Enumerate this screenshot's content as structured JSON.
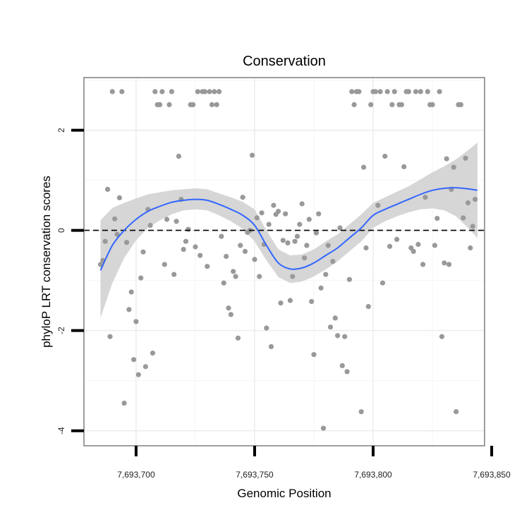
{
  "chart_data": {
    "type": "scatter",
    "title": "Conservation",
    "xlabel": "Genomic Position",
    "ylabel": "phyloP LRT conservation scores",
    "xlim": [
      7693678,
      7693847
    ],
    "ylim": [
      -4.3,
      3.05
    ],
    "x_ticks": [
      {
        "value": 7693700,
        "label": "7,693,700"
      },
      {
        "value": 7693750,
        "label": "7,693,750"
      },
      {
        "value": 7693800,
        "label": "7,693,800"
      },
      {
        "value": 7693850,
        "label": "7,693,850"
      }
    ],
    "y_ticks": [
      {
        "value": -4,
        "label": "-4"
      },
      {
        "value": -2,
        "label": "-2"
      },
      {
        "value": 0,
        "label": "0"
      },
      {
        "value": 2,
        "label": "2"
      }
    ],
    "reference_line": {
      "y": 0,
      "style": "dashed",
      "color": "#000000"
    },
    "points_color": "#999999",
    "smooth_color": "#3366ff",
    "band_color": "#d4d4d4",
    "points": [
      [
        7693685,
        -0.68
      ],
      [
        7693686,
        -0.6
      ],
      [
        7693687,
        -0.22
      ],
      [
        7693688,
        0.82
      ],
      [
        7693689,
        -2.12
      ],
      [
        7693690,
        2.77
      ],
      [
        7693691,
        0.23
      ],
      [
        7693692,
        -0.08
      ],
      [
        7693693,
        0.65
      ],
      [
        7693694,
        2.77
      ],
      [
        7693695,
        -3.45
      ],
      [
        7693696,
        -0.24
      ],
      [
        7693697,
        -1.58
      ],
      [
        7693698,
        -1.23
      ],
      [
        7693699,
        -2.58
      ],
      [
        7693700,
        -1.82
      ],
      [
        7693701,
        -2.88
      ],
      [
        7693702,
        -0.95
      ],
      [
        7693703,
        -0.43
      ],
      [
        7693704,
        -2.72
      ],
      [
        7693705,
        0.42
      ],
      [
        7693706,
        0.1
      ],
      [
        7693707,
        -2.45
      ],
      [
        7693708,
        2.77
      ],
      [
        7693709,
        2.51
      ],
      [
        7693710,
        2.51
      ],
      [
        7693711,
        2.77
      ],
      [
        7693712,
        -0.68
      ],
      [
        7693713,
        0.22
      ],
      [
        7693714,
        2.51
      ],
      [
        7693715,
        2.77
      ],
      [
        7693716,
        -0.88
      ],
      [
        7693717,
        0.18
      ],
      [
        7693718,
        1.48
      ],
      [
        7693719,
        0.62
      ],
      [
        7693720,
        -0.38
      ],
      [
        7693721,
        -0.22
      ],
      [
        7693722,
        0.02
      ],
      [
        7693723,
        2.51
      ],
      [
        7693724,
        2.51
      ],
      [
        7693725,
        -0.33
      ],
      [
        7693726,
        2.77
      ],
      [
        7693727,
        -0.5
      ],
      [
        7693728,
        2.77
      ],
      [
        7693729,
        2.77
      ],
      [
        7693730,
        -0.72
      ],
      [
        7693731,
        2.77
      ],
      [
        7693732,
        2.51
      ],
      [
        7693733,
        2.77
      ],
      [
        7693734,
        2.51
      ],
      [
        7693735,
        2.77
      ],
      [
        7693736,
        -0.12
      ],
      [
        7693737,
        -1.05
      ],
      [
        7693738,
        -0.52
      ],
      [
        7693739,
        -1.55
      ],
      [
        7693740,
        -1.68
      ],
      [
        7693741,
        -0.82
      ],
      [
        7693742,
        -0.92
      ],
      [
        7693743,
        -2.15
      ],
      [
        7693744,
        -0.3
      ],
      [
        7693745,
        0.66
      ],
      [
        7693746,
        -0.42
      ],
      [
        7693747,
        -0.04
      ],
      [
        7693748,
        0.0
      ],
      [
        7693749,
        1.5
      ],
      [
        7693750,
        -0.58
      ],
      [
        7693751,
        0.25
      ],
      [
        7693752,
        -0.92
      ],
      [
        7693753,
        0.35
      ],
      [
        7693754,
        -0.28
      ],
      [
        7693755,
        -1.95
      ],
      [
        7693756,
        0.12
      ],
      [
        7693757,
        -2.32
      ],
      [
        7693758,
        0.5
      ],
      [
        7693759,
        0.32
      ],
      [
        7693760,
        0.38
      ],
      [
        7693761,
        -1.45
      ],
      [
        7693762,
        -0.2
      ],
      [
        7693763,
        0.33
      ],
      [
        7693764,
        -0.25
      ],
      [
        7693765,
        -1.4
      ],
      [
        7693766,
        -0.92
      ],
      [
        7693767,
        -0.22
      ],
      [
        7693768,
        -0.12
      ],
      [
        7693769,
        0.12
      ],
      [
        7693770,
        0.53
      ],
      [
        7693771,
        -0.55
      ],
      [
        7693772,
        -0.3
      ],
      [
        7693773,
        0.22
      ],
      [
        7693774,
        -1.42
      ],
      [
        7693775,
        -2.48
      ],
      [
        7693776,
        -0.05
      ],
      [
        7693777,
        0.33
      ],
      [
        7693778,
        -1.15
      ],
      [
        7693779,
        -3.95
      ],
      [
        7693780,
        -0.88
      ],
      [
        7693781,
        -0.3
      ],
      [
        7693782,
        -1.93
      ],
      [
        7693783,
        -0.62
      ],
      [
        7693784,
        -1.75
      ],
      [
        7693785,
        -2.1
      ],
      [
        7693786,
        0.05
      ],
      [
        7693787,
        -2.7
      ],
      [
        7693788,
        -2.12
      ],
      [
        7693789,
        -2.82
      ],
      [
        7693790,
        -0.98
      ],
      [
        7693791,
        2.77
      ],
      [
        7693792,
        2.51
      ],
      [
        7693793,
        2.77
      ],
      [
        7693794,
        2.77
      ],
      [
        7693795,
        -3.62
      ],
      [
        7693796,
        1.26
      ],
      [
        7693797,
        -0.35
      ],
      [
        7693798,
        -1.52
      ],
      [
        7693799,
        2.51
      ],
      [
        7693800,
        2.77
      ],
      [
        7693801,
        2.77
      ],
      [
        7693802,
        0.5
      ],
      [
        7693803,
        2.77
      ],
      [
        7693804,
        -1.05
      ],
      [
        7693805,
        1.48
      ],
      [
        7693806,
        2.77
      ],
      [
        7693807,
        -0.32
      ],
      [
        7693808,
        2.51
      ],
      [
        7693809,
        2.77
      ],
      [
        7693810,
        -0.18
      ],
      [
        7693811,
        2.51
      ],
      [
        7693812,
        2.51
      ],
      [
        7693813,
        1.27
      ],
      [
        7693814,
        2.77
      ],
      [
        7693815,
        2.77
      ],
      [
        7693816,
        -0.35
      ],
      [
        7693817,
        -0.42
      ],
      [
        7693818,
        2.77
      ],
      [
        7693819,
        -0.28
      ],
      [
        7693820,
        2.77
      ],
      [
        7693821,
        -0.68
      ],
      [
        7693822,
        0.66
      ],
      [
        7693823,
        2.77
      ],
      [
        7693824,
        2.51
      ],
      [
        7693825,
        2.51
      ],
      [
        7693826,
        -0.3
      ],
      [
        7693827,
        0.24
      ],
      [
        7693828,
        2.77
      ],
      [
        7693829,
        -2.12
      ],
      [
        7693830,
        -0.65
      ],
      [
        7693831,
        1.43
      ],
      [
        7693832,
        -0.68
      ],
      [
        7693833,
        0.82
      ],
      [
        7693834,
        1.26
      ],
      [
        7693835,
        -3.62
      ],
      [
        7693836,
        2.51
      ],
      [
        7693837,
        2.51
      ],
      [
        7693838,
        0.25
      ],
      [
        7693839,
        1.44
      ],
      [
        7693840,
        0.55
      ],
      [
        7693841,
        -0.35
      ],
      [
        7693842,
        0.08
      ],
      [
        7693843,
        0.62
      ]
    ],
    "smooth": [
      [
        7693685,
        -0.8
      ],
      [
        7693690,
        -0.3
      ],
      [
        7693695,
        0.0
      ],
      [
        7693700,
        0.22
      ],
      [
        7693705,
        0.38
      ],
      [
        7693710,
        0.48
      ],
      [
        7693715,
        0.56
      ],
      [
        7693720,
        0.6
      ],
      [
        7693725,
        0.62
      ],
      [
        7693730,
        0.6
      ],
      [
        7693735,
        0.52
      ],
      [
        7693740,
        0.42
      ],
      [
        7693745,
        0.3
      ],
      [
        7693750,
        0.1
      ],
      [
        7693755,
        -0.3
      ],
      [
        7693760,
        -0.65
      ],
      [
        7693765,
        -0.77
      ],
      [
        7693770,
        -0.75
      ],
      [
        7693775,
        -0.65
      ],
      [
        7693780,
        -0.5
      ],
      [
        7693785,
        -0.35
      ],
      [
        7693790,
        -0.15
      ],
      [
        7693795,
        0.05
      ],
      [
        7693800,
        0.3
      ],
      [
        7693805,
        0.42
      ],
      [
        7693810,
        0.52
      ],
      [
        7693815,
        0.62
      ],
      [
        7693820,
        0.72
      ],
      [
        7693825,
        0.8
      ],
      [
        7693830,
        0.84
      ],
      [
        7693835,
        0.85
      ],
      [
        7693840,
        0.83
      ],
      [
        7693844,
        0.8
      ]
    ],
    "band_lower": [
      [
        7693685,
        -1.75
      ],
      [
        7693690,
        -1.05
      ],
      [
        7693695,
        -0.55
      ],
      [
        7693700,
        -0.2
      ],
      [
        7693705,
        0.05
      ],
      [
        7693710,
        0.2
      ],
      [
        7693715,
        0.32
      ],
      [
        7693720,
        0.4
      ],
      [
        7693725,
        0.42
      ],
      [
        7693730,
        0.4
      ],
      [
        7693735,
        0.3
      ],
      [
        7693740,
        0.18
      ],
      [
        7693745,
        0.03
      ],
      [
        7693750,
        -0.22
      ],
      [
        7693755,
        -0.6
      ],
      [
        7693760,
        -0.93
      ],
      [
        7693765,
        -1.05
      ],
      [
        7693770,
        -1.02
      ],
      [
        7693775,
        -0.92
      ],
      [
        7693780,
        -0.78
      ],
      [
        7693785,
        -0.62
      ],
      [
        7693790,
        -0.42
      ],
      [
        7693795,
        -0.22
      ],
      [
        7693800,
        0.05
      ],
      [
        7693805,
        0.18
      ],
      [
        7693810,
        0.28
      ],
      [
        7693815,
        0.36
      ],
      [
        7693820,
        0.42
      ],
      [
        7693825,
        0.44
      ],
      [
        7693830,
        0.4
      ],
      [
        7693835,
        0.28
      ],
      [
        7693840,
        0.05
      ],
      [
        7693844,
        -0.15
      ]
    ],
    "band_upper": [
      [
        7693685,
        0.2
      ],
      [
        7693690,
        0.45
      ],
      [
        7693695,
        0.55
      ],
      [
        7693700,
        0.64
      ],
      [
        7693705,
        0.72
      ],
      [
        7693710,
        0.76
      ],
      [
        7693715,
        0.8
      ],
      [
        7693720,
        0.82
      ],
      [
        7693725,
        0.84
      ],
      [
        7693730,
        0.82
      ],
      [
        7693735,
        0.74
      ],
      [
        7693740,
        0.66
      ],
      [
        7693745,
        0.57
      ],
      [
        7693750,
        0.42
      ],
      [
        7693755,
        0.0
      ],
      [
        7693760,
        -0.38
      ],
      [
        7693765,
        -0.5
      ],
      [
        7693770,
        -0.48
      ],
      [
        7693775,
        -0.38
      ],
      [
        7693780,
        -0.22
      ],
      [
        7693785,
        -0.08
      ],
      [
        7693790,
        0.12
      ],
      [
        7693795,
        0.32
      ],
      [
        7693800,
        0.55
      ],
      [
        7693805,
        0.66
      ],
      [
        7693810,
        0.77
      ],
      [
        7693815,
        0.88
      ],
      [
        7693820,
        1.02
      ],
      [
        7693825,
        1.16
      ],
      [
        7693830,
        1.28
      ],
      [
        7693835,
        1.42
      ],
      [
        7693840,
        1.6
      ],
      [
        7693844,
        1.75
      ]
    ]
  }
}
